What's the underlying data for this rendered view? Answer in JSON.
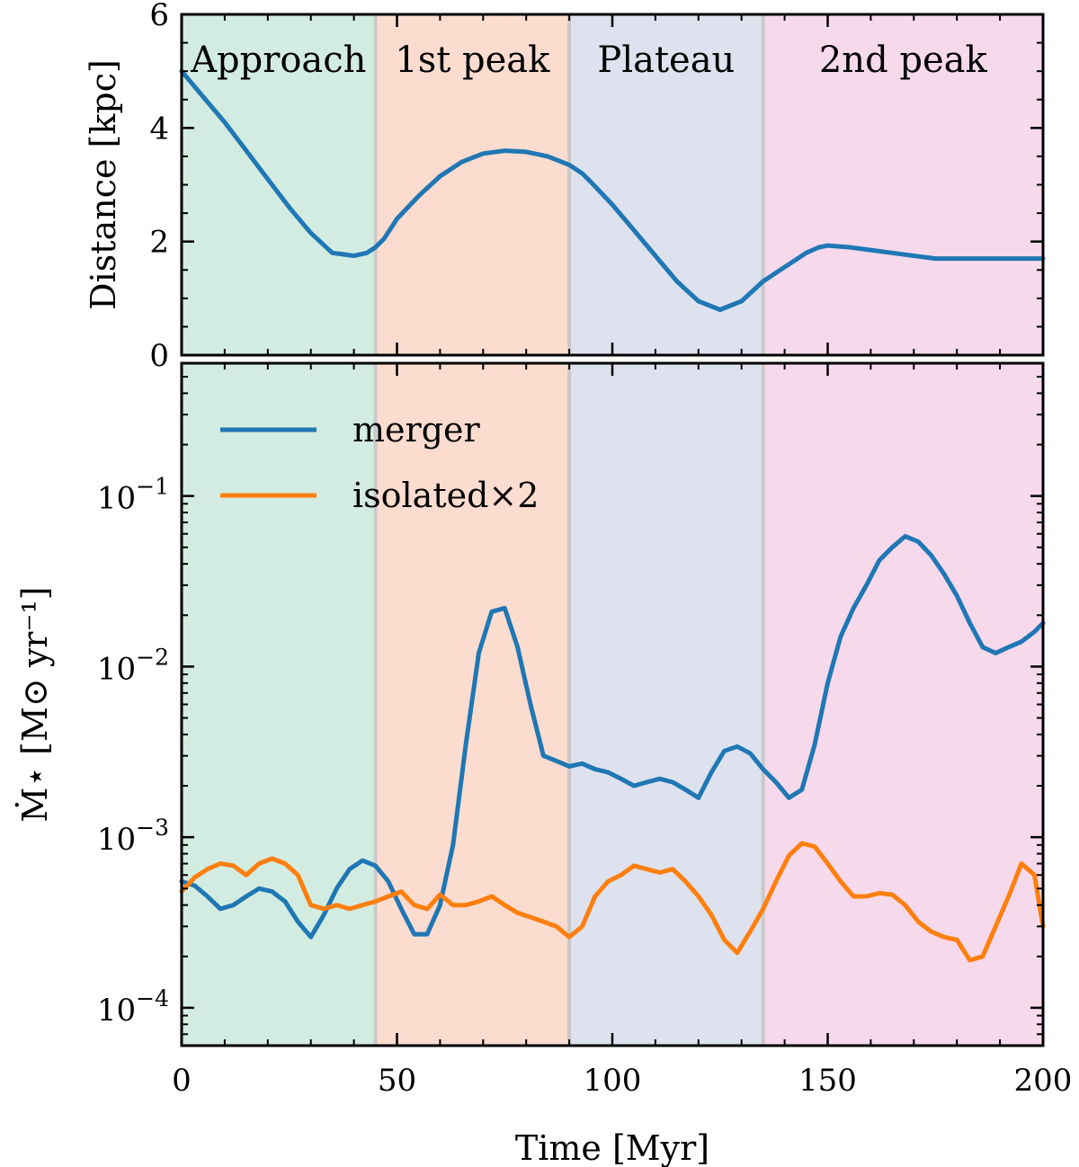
{
  "phases": [
    {
      "label": "Approach",
      "start": 0,
      "end": 45,
      "color": "#d3ece1"
    },
    {
      "label": "1st peak",
      "start": 45,
      "end": 90,
      "color": "#fcdccf"
    },
    {
      "label": "Plateau",
      "start": 90,
      "end": 135,
      "color": "#dde2ee"
    },
    {
      "label": "2nd peak",
      "start": 135,
      "end": 200,
      "color": "#f7d9ec"
    }
  ],
  "phase_divider_color": "#c9c9c9",
  "chart_data": [
    {
      "type": "line",
      "panel": "top",
      "xlabel": "",
      "ylabel": "Distance [kpc]",
      "xlim": [
        0,
        200
      ],
      "ylim": [
        0,
        6
      ],
      "yticks": [
        {
          "value": 0,
          "label": "0"
        },
        {
          "value": 2,
          "label": "2"
        },
        {
          "value": 4,
          "label": "4"
        },
        {
          "value": 6,
          "label": "6"
        }
      ],
      "series": [
        {
          "color": "#1f77b4",
          "x": [
            0,
            5,
            10,
            15,
            20,
            25,
            30,
            35,
            40,
            43,
            45,
            47,
            50,
            55,
            60,
            65,
            70,
            75,
            80,
            85,
            90,
            93,
            95,
            100,
            105,
            110,
            115,
            120,
            125,
            130,
            135,
            140,
            145,
            148,
            150,
            155,
            160,
            165,
            170,
            175,
            180,
            185,
            190,
            195,
            200
          ],
          "y": [
            5.0,
            4.55,
            4.1,
            3.6,
            3.1,
            2.6,
            2.15,
            1.8,
            1.75,
            1.8,
            1.9,
            2.05,
            2.4,
            2.8,
            3.15,
            3.4,
            3.55,
            3.6,
            3.58,
            3.5,
            3.35,
            3.2,
            3.05,
            2.65,
            2.2,
            1.75,
            1.3,
            0.95,
            0.8,
            0.95,
            1.3,
            1.55,
            1.8,
            1.9,
            1.93,
            1.9,
            1.85,
            1.8,
            1.75,
            1.7,
            1.7,
            1.7,
            1.7,
            1.7,
            1.7
          ]
        }
      ]
    },
    {
      "type": "line",
      "panel": "bottom",
      "xlabel": "Time [Myr]",
      "ylabel": "Ṁ⋆ [M⊙ yr⁻¹]",
      "yscale": "log",
      "xlim": [
        0,
        200
      ],
      "ylim": [
        6e-05,
        0.6
      ],
      "xticks": [
        {
          "value": 0,
          "label": "0"
        },
        {
          "value": 50,
          "label": "50"
        },
        {
          "value": 100,
          "label": "100"
        },
        {
          "value": 150,
          "label": "150"
        },
        {
          "value": 200,
          "label": "200"
        }
      ],
      "yticks": [
        {
          "exp": -4,
          "label": "10",
          "sup": "−4"
        },
        {
          "exp": -3,
          "label": "10",
          "sup": "−3"
        },
        {
          "exp": -2,
          "label": "10",
          "sup": "−2"
        },
        {
          "exp": -1,
          "label": "10",
          "sup": "−1"
        }
      ],
      "legend": {
        "placement": "top-left"
      },
      "series": [
        {
          "name": "merger",
          "color": "#1f77b4",
          "x": [
            0,
            3,
            6,
            9,
            12,
            15,
            18,
            21,
            24,
            27,
            30,
            33,
            36,
            39,
            42,
            45,
            48,
            51,
            54,
            57,
            60,
            63,
            66,
            69,
            72,
            75,
            78,
            81,
            84,
            87,
            90,
            93,
            96,
            99,
            102,
            105,
            108,
            111,
            114,
            117,
            120,
            123,
            126,
            129,
            132,
            135,
            138,
            141,
            144,
            147,
            150,
            153,
            156,
            159,
            162,
            165,
            168,
            171,
            174,
            177,
            180,
            183,
            186,
            189,
            192,
            195,
            198,
            200
          ],
          "y": [
            0.00055,
            0.00052,
            0.00045,
            0.00038,
            0.0004,
            0.00045,
            0.0005,
            0.00048,
            0.00042,
            0.00032,
            0.00026,
            0.00035,
            0.0005,
            0.00065,
            0.00073,
            0.00068,
            0.00055,
            0.00038,
            0.00027,
            0.00027,
            0.0004,
            0.0009,
            0.0035,
            0.012,
            0.021,
            0.022,
            0.013,
            0.006,
            0.003,
            0.0028,
            0.0026,
            0.0027,
            0.0025,
            0.0024,
            0.0022,
            0.002,
            0.0021,
            0.0022,
            0.0021,
            0.0019,
            0.0017,
            0.0024,
            0.0032,
            0.0034,
            0.0031,
            0.0025,
            0.0021,
            0.0017,
            0.0019,
            0.0035,
            0.008,
            0.015,
            0.022,
            0.03,
            0.042,
            0.05,
            0.058,
            0.054,
            0.045,
            0.035,
            0.026,
            0.018,
            0.013,
            0.012,
            0.013,
            0.014,
            0.016,
            0.018
          ]
        },
        {
          "name": "isolated×2",
          "color": "#ff7f0e",
          "x": [
            0,
            3,
            6,
            9,
            12,
            15,
            18,
            21,
            24,
            27,
            30,
            33,
            36,
            39,
            42,
            45,
            48,
            51,
            54,
            57,
            60,
            63,
            66,
            69,
            72,
            75,
            78,
            81,
            84,
            87,
            90,
            93,
            96,
            99,
            102,
            105,
            108,
            111,
            114,
            117,
            120,
            123,
            126,
            129,
            132,
            135,
            138,
            141,
            144,
            147,
            150,
            153,
            156,
            159,
            162,
            165,
            168,
            171,
            174,
            177,
            180,
            183,
            186,
            189,
            192,
            195,
            198,
            200
          ],
          "y": [
            0.00048,
            0.00058,
            0.00065,
            0.0007,
            0.00068,
            0.0006,
            0.0007,
            0.00075,
            0.0007,
            0.0006,
            0.0004,
            0.00038,
            0.0004,
            0.00038,
            0.0004,
            0.00042,
            0.00045,
            0.00048,
            0.0004,
            0.00038,
            0.00046,
            0.0004,
            0.0004,
            0.00042,
            0.00045,
            0.0004,
            0.00036,
            0.00034,
            0.00032,
            0.0003,
            0.00026,
            0.0003,
            0.00045,
            0.00055,
            0.0006,
            0.00068,
            0.00065,
            0.00062,
            0.00065,
            0.00055,
            0.00045,
            0.00035,
            0.00025,
            0.00021,
            0.00028,
            0.00038,
            0.00055,
            0.00078,
            0.00092,
            0.00088,
            0.0007,
            0.00055,
            0.00045,
            0.00045,
            0.00047,
            0.00046,
            0.0004,
            0.00032,
            0.00028,
            0.00026,
            0.00025,
            0.00019,
            0.0002,
            0.0003,
            0.00045,
            0.0007,
            0.0006,
            0.0003
          ]
        }
      ]
    }
  ]
}
